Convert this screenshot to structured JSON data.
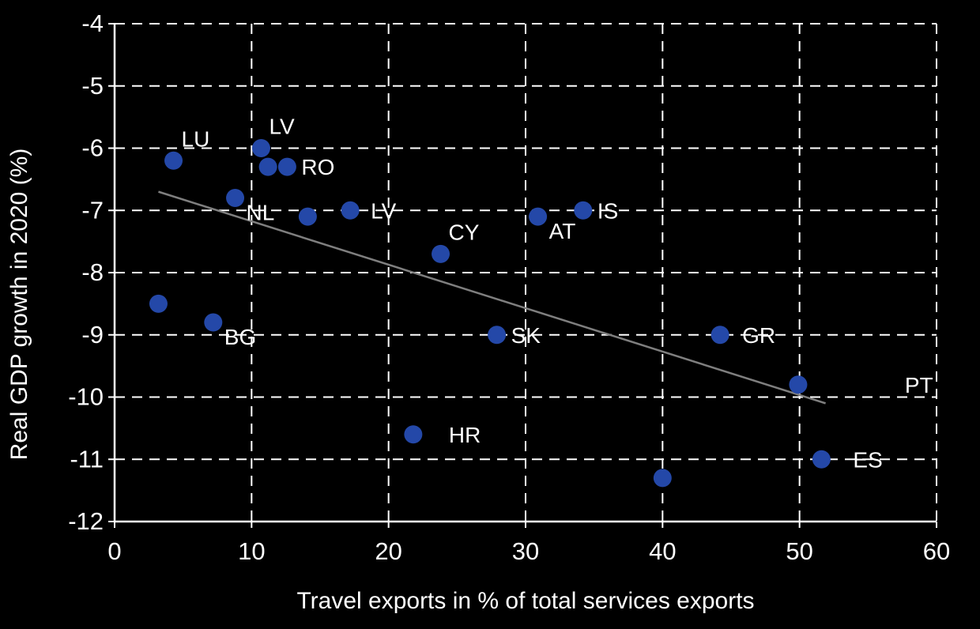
{
  "chart_data": {
    "type": "scatter",
    "xlabel": "Travel exports in % of total services exports",
    "ylabel": "Real GDP growth in 2020 (%)",
    "xlim": [
      0,
      60
    ],
    "ylim": [
      -12,
      -4
    ],
    "x_ticks": [
      0,
      10,
      20,
      30,
      40,
      50,
      60
    ],
    "y_ticks": [
      -4,
      -5,
      -6,
      -7,
      -8,
      -9,
      -10,
      -11,
      -12
    ],
    "grid": "dashed",
    "legend_position": "none",
    "colors": {
      "background": "#000000",
      "points": "#2448a8",
      "grid": "#ffffff",
      "trend": "#7f7f7f",
      "text": "#ffffff"
    },
    "trend_line": {
      "x1": 3.2,
      "y1": -6.7,
      "x2": 51.9,
      "y2": -10.1
    },
    "points": [
      {
        "x": 4.3,
        "y": -6.2,
        "label": "LU",
        "label_pos": "topright"
      },
      {
        "x": 10.7,
        "y": -6.0,
        "label": "LV",
        "label_pos": "topright"
      },
      {
        "x": 11.2,
        "y": -6.3,
        "label": ""
      },
      {
        "x": 12.6,
        "y": -6.3,
        "label": "RO",
        "label_pos": "right"
      },
      {
        "x": 8.8,
        "y": -6.8,
        "label": "NL",
        "label_pos": "bottomright"
      },
      {
        "x": 14.1,
        "y": -7.1,
        "label": ""
      },
      {
        "x": 17.2,
        "y": -7.0,
        "label": "LV",
        "label_pos": "right",
        "dx": 26
      },
      {
        "x": 23.8,
        "y": -7.7,
        "label": "CY",
        "label_pos": "topright"
      },
      {
        "x": 30.9,
        "y": -7.1,
        "label": "AT",
        "label_pos": "bottomright"
      },
      {
        "x": 34.2,
        "y": -7.0,
        "label": "IS",
        "label_pos": "right"
      },
      {
        "x": 3.2,
        "y": -8.5,
        "label": ""
      },
      {
        "x": 7.2,
        "y": -8.8,
        "label": "BG",
        "label_pos": "bottomright"
      },
      {
        "x": 27.9,
        "y": -9.0,
        "label": "SK",
        "label_pos": "right"
      },
      {
        "x": 44.2,
        "y": -9.0,
        "label": "GR",
        "label_pos": "right",
        "dx": 28
      },
      {
        "x": 49.9,
        "y": -9.8,
        "label": "PT",
        "label_pos": "right",
        "dx": 135
      },
      {
        "x": 21.8,
        "y": -10.6,
        "label": "HR",
        "label_pos": "right",
        "dx": 45
      },
      {
        "x": 40.0,
        "y": -11.3,
        "label": ""
      },
      {
        "x": 51.6,
        "y": -11.0,
        "label": "ES",
        "label_pos": "right",
        "dx": 40
      }
    ]
  }
}
